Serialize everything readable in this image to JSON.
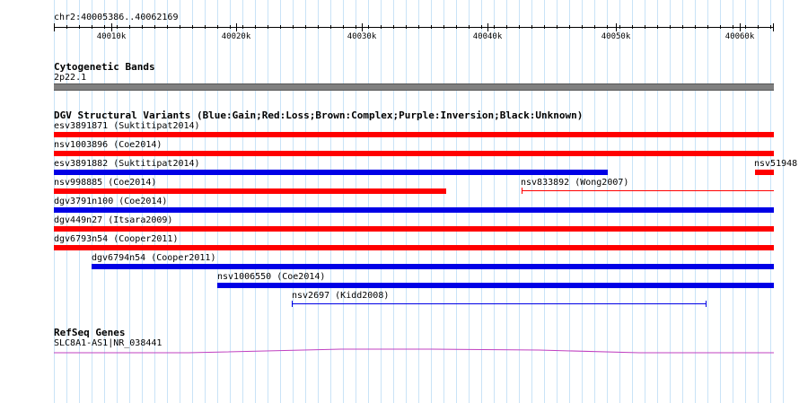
{
  "ruler": {
    "position_label": "chr2:40005386..40062169",
    "ticks": [
      "40010k",
      "40020k",
      "40030k",
      "40040k",
      "40050k",
      "40060k"
    ]
  },
  "cytoband": {
    "title": "Cytogenetic Bands",
    "band_label": "2p22.1",
    "band_color": "#808080"
  },
  "dgv": {
    "title": "DGV Structural Variants (Blue:Gain;Red:Loss;Brown:Complex;Purple:Inversion;Black:Unknown)",
    "colors": {
      "gain": "#0000e6",
      "loss": "#ff0000"
    },
    "variants": [
      {
        "label": "esv3891871 (Suktitipat2014)",
        "type": "loss",
        "style": "thick"
      },
      {
        "label": "nsv1003896 (Coe2014)",
        "type": "loss",
        "style": "thick"
      },
      {
        "label": "esv3891882 (Suktitipat2014)",
        "type": "gain",
        "style": "thick"
      },
      {
        "label": "nsv51948",
        "type": "loss",
        "style": "thick"
      },
      {
        "label": "nsv998885 (Coe2014)",
        "type": "loss",
        "style": "thick"
      },
      {
        "label": "nsv833892 (Wong2007)",
        "type": "loss",
        "style": "thin"
      },
      {
        "label": "dgv3791n100 (Coe2014)",
        "type": "gain",
        "style": "thick"
      },
      {
        "label": "dgv449n27 (Itsara2009)",
        "type": "loss",
        "style": "thick"
      },
      {
        "label": "dgv6793n54 (Cooper2011)",
        "type": "loss",
        "style": "thick"
      },
      {
        "label": "dgv6794n54 (Cooper2011)",
        "type": "gain",
        "style": "thick"
      },
      {
        "label": "nsv1006550 (Coe2014)",
        "type": "gain",
        "style": "thick"
      },
      {
        "label": "nsv2697 (Kidd2008)",
        "type": "gain",
        "style": "thin"
      }
    ]
  },
  "refseq": {
    "title": "RefSeq Genes",
    "gene_label": "SLC8A1-AS1|NR_038441",
    "gene_color": "#c040c0"
  }
}
